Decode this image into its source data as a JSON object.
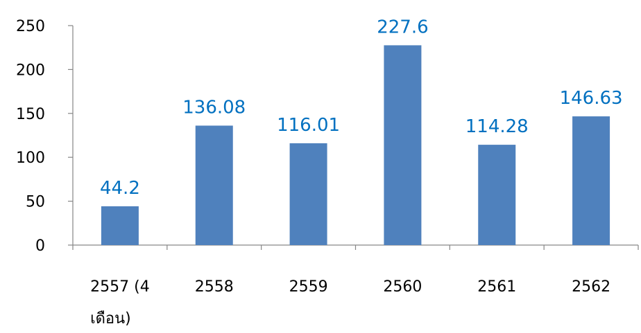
{
  "chart_data": {
    "type": "bar",
    "categories": [
      "2557 (4 เดือน)",
      "2558",
      "2559",
      "2560",
      "2561",
      "2562"
    ],
    "category_lines": [
      [
        "2557 (4",
        "เดือน)"
      ],
      [
        "2558"
      ],
      [
        "2559"
      ],
      [
        "2560"
      ],
      [
        "2561"
      ],
      [
        "2562"
      ]
    ],
    "values": [
      44.2,
      136.08,
      116.01,
      227.6,
      114.28,
      146.63
    ],
    "value_labels": [
      "44.2",
      "136.08",
      "116.01",
      "227.6",
      "114.28",
      "146.63"
    ],
    "yticks": [
      0,
      50,
      100,
      150,
      200,
      250
    ],
    "ylim": [
      0,
      250
    ],
    "grid": false,
    "legend": "none",
    "bar_color": "#4F81BD",
    "label_color": "#0070C0"
  }
}
